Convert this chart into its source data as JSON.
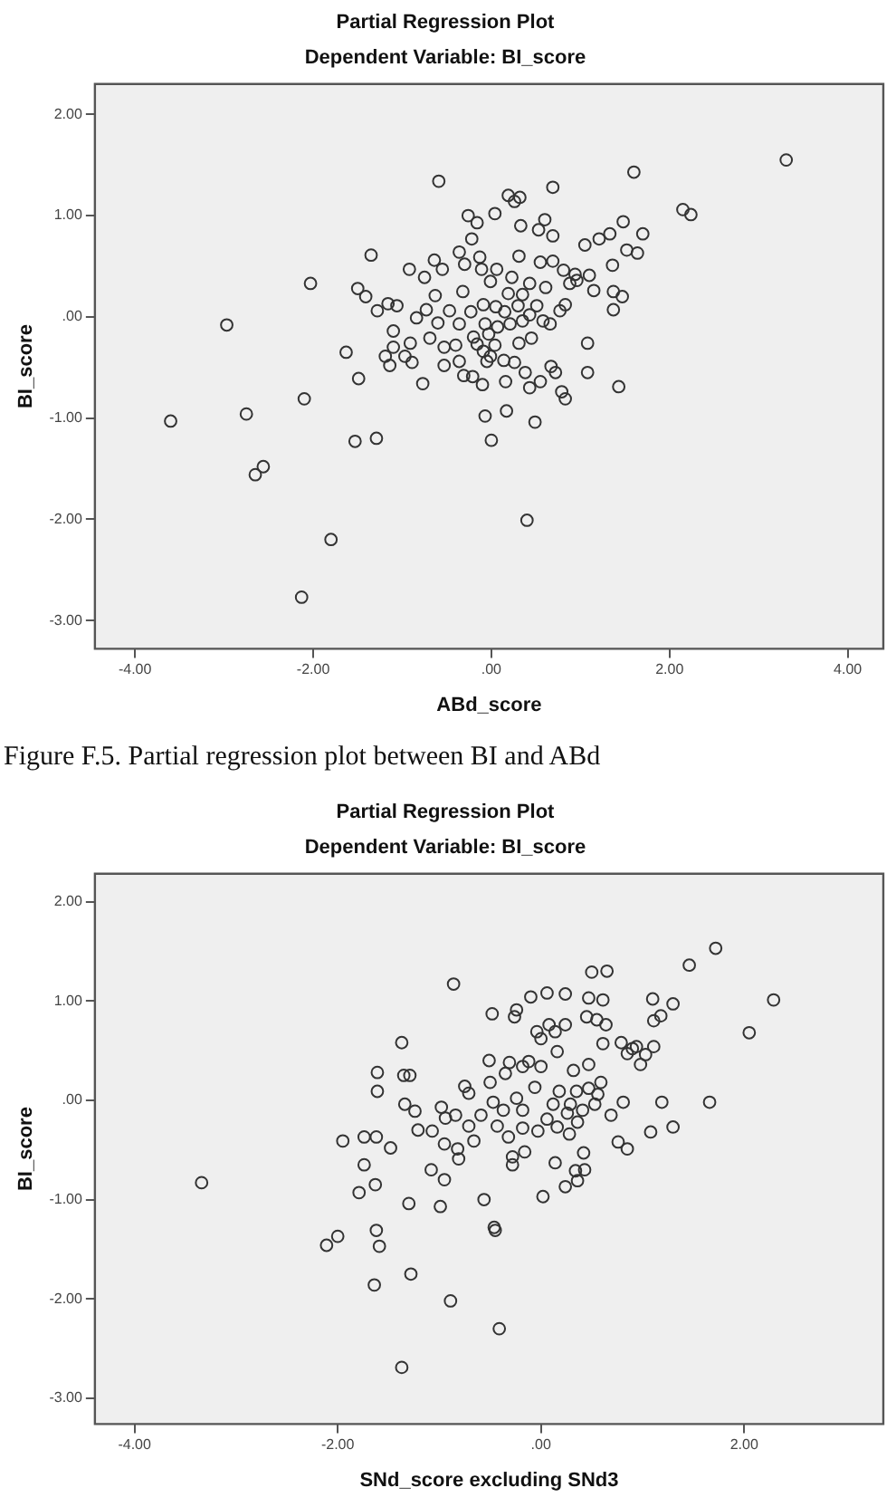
{
  "chart_data": [
    {
      "type": "scatter",
      "title": "Partial Regression Plot",
      "subtitle": "Dependent Variable: BI_score",
      "xlabel": "ABd_score",
      "ylabel": "BI_score",
      "annotations": [
        "Figure F.5. Partial regression plot between BI and ABd"
      ],
      "marker": "circle",
      "color": "#333333",
      "xlim": [
        -4.45,
        4.4
      ],
      "ylim": [
        -3.28,
        2.3
      ],
      "xticks": [
        {
          "value": -4,
          "label": "-4.00"
        },
        {
          "value": -2,
          "label": "-2.00"
        },
        {
          "value": 0,
          "label": ".00"
        },
        {
          "value": 2,
          "label": "2.00"
        },
        {
          "value": 4,
          "label": "4.00"
        }
      ],
      "yticks": [
        {
          "value": -3,
          "label": "-3.00"
        },
        {
          "value": -2,
          "label": "-2.00"
        },
        {
          "value": -1,
          "label": "-1.00"
        },
        {
          "value": 0,
          "label": ".00"
        },
        {
          "value": 1,
          "label": "1.00"
        },
        {
          "value": 2,
          "label": "2.00"
        }
      ],
      "x": [
        3.31,
        -0.59,
        1.6,
        0.69,
        0.19,
        0.32,
        0.26,
        2.15,
        2.24,
        -0.26,
        0.04,
        -0.16,
        0.6,
        0.33,
        1.48,
        1.7,
        1.33,
        1.21,
        1.05,
        0.69,
        0.53,
        -0.22,
        1.52,
        1.64,
        -1.35,
        -2.03,
        -2.97,
        -0.92,
        -0.75,
        -0.64,
        -0.55,
        -0.36,
        -0.13,
        -0.3,
        -0.11,
        0.06,
        0.31,
        0.55,
        0.69,
        0.81,
        0.94,
        1.1,
        1.36,
        1.37,
        1.47,
        1.15,
        1.37,
        -1.5,
        -1.41,
        -1.28,
        -1.16,
        -1.06,
        -0.63,
        -0.32,
        -0.01,
        0.23,
        0.43,
        0.61,
        0.83,
        0.77,
        -0.84,
        -0.73,
        -0.6,
        -0.47,
        -0.36,
        -0.23,
        -0.09,
        0.05,
        0.15,
        0.3,
        0.43,
        0.58,
        0.51,
        0.35,
        0.19,
        -1.1,
        -0.91,
        -1.1,
        -1.19,
        -0.97,
        -1.14,
        -0.89,
        -1.63,
        -1.49,
        -0.69,
        -0.53,
        -0.4,
        -0.2,
        -0.09,
        0.04,
        -0.01,
        0.14,
        0.31,
        0.45,
        0.26,
        -0.53,
        -0.36,
        -0.31,
        -0.21,
        -0.1,
        -0.77,
        0.16,
        0.38,
        0.43,
        0.55,
        0.67,
        0.72,
        1.08,
        1.08,
        0.79,
        0.83,
        1.43,
        -2.1,
        -2.75,
        -3.6,
        -1.53,
        -1.29,
        -0.07,
        0.17,
        0.0,
        0.49,
        -2.56,
        -2.65,
        0.4,
        -1.8,
        -2.13,
        -0.03,
        0.07,
        0.21,
        0.35,
        -0.07,
        -0.16,
        -0.05,
        0.66,
        0.88,
        0.96
      ],
      "values": [
        1.55,
        1.34,
        1.43,
        1.28,
        1.2,
        1.18,
        1.14,
        1.06,
        1.01,
        1.0,
        1.02,
        0.93,
        0.96,
        0.9,
        0.94,
        0.82,
        0.82,
        0.77,
        0.71,
        0.8,
        0.86,
        0.77,
        0.66,
        0.63,
        0.61,
        0.33,
        -0.08,
        0.47,
        0.39,
        0.56,
        0.47,
        0.64,
        0.59,
        0.52,
        0.47,
        0.47,
        0.6,
        0.54,
        0.55,
        0.46,
        0.42,
        0.41,
        0.51,
        0.25,
        0.2,
        0.26,
        0.07,
        0.28,
        0.2,
        0.06,
        0.13,
        0.11,
        0.21,
        0.25,
        0.35,
        0.39,
        0.33,
        0.29,
        0.12,
        0.06,
        -0.01,
        0.07,
        -0.06,
        0.06,
        -0.07,
        0.05,
        0.12,
        0.1,
        0.05,
        0.11,
        0.02,
        -0.04,
        0.11,
        0.22,
        0.23,
        -0.14,
        -0.26,
        -0.3,
        -0.39,
        -0.39,
        -0.48,
        -0.45,
        -0.35,
        -0.61,
        -0.21,
        -0.3,
        -0.28,
        -0.2,
        -0.34,
        -0.28,
        -0.39,
        -0.43,
        -0.26,
        -0.21,
        -0.45,
        -0.48,
        -0.44,
        -0.58,
        -0.59,
        -0.67,
        -0.66,
        -0.64,
        -0.55,
        -0.7,
        -0.64,
        -0.49,
        -0.55,
        -0.26,
        -0.55,
        -0.74,
        -0.81,
        -0.69,
        -0.81,
        -0.96,
        -1.03,
        -1.23,
        -1.2,
        -0.98,
        -0.93,
        -1.22,
        -1.04,
        -1.48,
        -1.56,
        -2.01,
        -2.2,
        -2.77,
        -0.17,
        -0.1,
        -0.07,
        -0.04,
        -0.07,
        -0.27,
        -0.44,
        -0.07,
        0.33,
        0.36
      ]
    },
    {
      "type": "scatter",
      "title": "Partial Regression Plot",
      "subtitle": "Dependent Variable: BI_score",
      "xlabel": "SNd_score excluding SNd3",
      "ylabel": "BI_score",
      "marker": "circle",
      "color": "#333333",
      "xlim": [
        -4.39,
        3.37
      ],
      "ylim": [
        -3.26,
        2.28
      ],
      "xticks": [
        {
          "value": -4,
          "label": "-4.00"
        },
        {
          "value": -2,
          "label": "-2.00"
        },
        {
          "value": 0,
          "label": ".00"
        },
        {
          "value": 2,
          "label": "2.00"
        }
      ],
      "yticks": [
        {
          "value": -3,
          "label": "-3.00"
        },
        {
          "value": -2,
          "label": "-2.00"
        },
        {
          "value": -1,
          "label": "-1.00"
        },
        {
          "value": 0,
          "label": ".00"
        },
        {
          "value": 1,
          "label": "1.00"
        },
        {
          "value": 2,
          "label": "2.00"
        }
      ],
      "x": [
        1.72,
        1.46,
        0.5,
        0.65,
        -0.86,
        2.29,
        -0.1,
        0.06,
        0.24,
        0.47,
        0.61,
        1.1,
        1.3,
        -0.48,
        -0.24,
        -0.26,
        2.05,
        0.45,
        0.55,
        0.64,
        1.11,
        1.18,
        0.08,
        0.24,
        -0.04,
        0.14,
        0.0,
        -1.37,
        0.61,
        0.79,
        0.94,
        1.11,
        0.85,
        0.98,
        0.16,
        -0.12,
        -0.31,
        -0.51,
        -1.61,
        -1.35,
        -1.29,
        -1.61,
        -1.34,
        -1.24,
        -0.75,
        -0.71,
        -0.5,
        -0.35,
        -0.18,
        0.0,
        0.32,
        0.47,
        0.59,
        0.47,
        0.35,
        0.18,
        -0.06,
        -0.24,
        -0.47,
        -0.59,
        -0.98,
        -0.94,
        -0.84,
        -0.71,
        -0.43,
        -0.32,
        -0.18,
        -0.03,
        0.06,
        0.16,
        0.28,
        0.36,
        0.41,
        0.53,
        0.69,
        0.81,
        1.19,
        1.66,
        1.08,
        1.3,
        0.76,
        0.85,
        -1.21,
        -1.07,
        -1.95,
        -1.74,
        -1.62,
        -1.48,
        -0.95,
        -0.82,
        -0.81,
        -0.66,
        -0.28,
        -0.28,
        -0.16,
        0.14,
        0.34,
        0.42,
        0.43,
        0.36,
        0.24,
        -1.74,
        -1.08,
        -0.95,
        -3.34,
        -1.79,
        -1.63,
        -1.3,
        -0.99,
        -0.56,
        0.02,
        -0.46,
        -0.45,
        -2.11,
        -2.0,
        -1.62,
        -1.59,
        -1.28,
        -1.64,
        -0.89,
        -0.41,
        -1.37,
        0.29,
        0.26,
        0.56,
        -0.37,
        -0.18,
        0.12,
        0.9,
        1.03
      ],
      "values": [
        1.53,
        1.36,
        1.29,
        1.3,
        1.17,
        1.01,
        1.04,
        1.08,
        1.07,
        1.03,
        1.01,
        1.02,
        0.97,
        0.87,
        0.91,
        0.84,
        0.68,
        0.84,
        0.81,
        0.76,
        0.8,
        0.85,
        0.76,
        0.76,
        0.69,
        0.69,
        0.62,
        0.58,
        0.57,
        0.58,
        0.54,
        0.54,
        0.47,
        0.36,
        0.49,
        0.39,
        0.38,
        0.4,
        0.28,
        0.25,
        0.25,
        0.09,
        -0.04,
        -0.11,
        0.14,
        0.07,
        0.18,
        0.27,
        0.34,
        0.34,
        0.3,
        0.36,
        0.18,
        0.12,
        0.09,
        0.09,
        0.13,
        0.02,
        -0.02,
        -0.15,
        -0.07,
        -0.18,
        -0.15,
        -0.26,
        -0.26,
        -0.37,
        -0.28,
        -0.31,
        -0.19,
        -0.27,
        -0.34,
        -0.22,
        -0.1,
        -0.04,
        -0.15,
        -0.02,
        -0.02,
        -0.02,
        -0.32,
        -0.27,
        -0.42,
        -0.49,
        -0.3,
        -0.31,
        -0.41,
        -0.37,
        -0.37,
        -0.48,
        -0.44,
        -0.49,
        -0.59,
        -0.41,
        -0.57,
        -0.65,
        -0.52,
        -0.63,
        -0.71,
        -0.53,
        -0.7,
        -0.81,
        -0.87,
        -0.65,
        -0.7,
        -0.8,
        -0.83,
        -0.93,
        -0.85,
        -1.04,
        -1.07,
        -1.0,
        -0.97,
        -1.28,
        -1.31,
        -1.46,
        -1.37,
        -1.31,
        -1.47,
        -1.75,
        -1.86,
        -2.02,
        -2.3,
        -2.69,
        -0.04,
        -0.13,
        0.06,
        -0.1,
        -0.1,
        -0.04,
        0.52,
        0.46
      ]
    }
  ]
}
